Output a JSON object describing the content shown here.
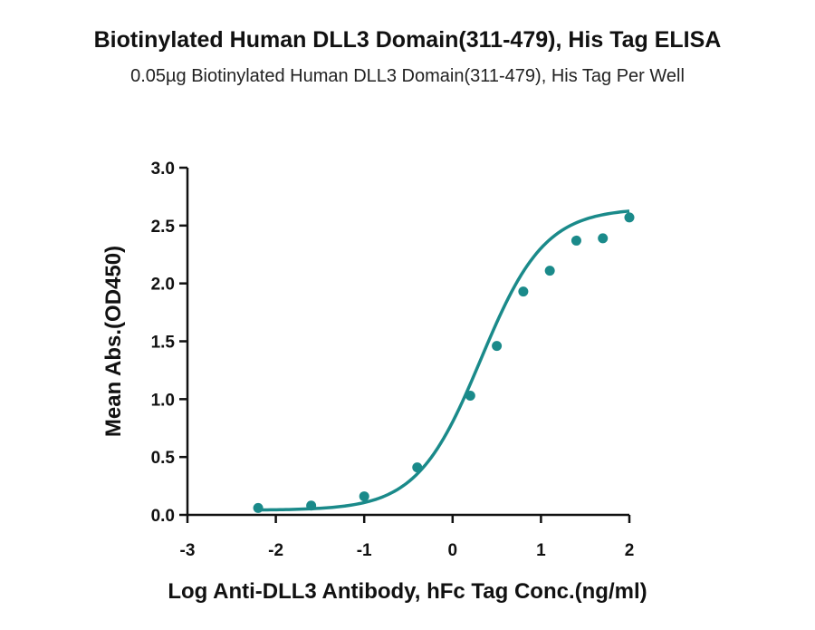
{
  "chart_data": {
    "type": "line",
    "title": "Biotinylated Human DLL3 Domain(311-479), His Tag ELISA",
    "subtitle": "0.05µg Biotinylated Human DLL3 Domain(311-479), His Tag Per Well",
    "xlabel": "Log Anti-DLL3 Antibody, hFc Tag Conc.(ng/ml)",
    "ylabel": "Mean Abs.(OD450)",
    "xlim": [
      -3,
      2
    ],
    "ylim": [
      0,
      3.0
    ],
    "xticks": [
      "-3",
      "-2",
      "-1",
      "0",
      "1",
      "2"
    ],
    "yticks": [
      "0.0",
      "0.5",
      "1.0",
      "1.5",
      "2.0",
      "2.5",
      "3.0"
    ],
    "grid": false,
    "series": [
      {
        "color": "#1a8a8a",
        "points": [
          {
            "x": -2.2,
            "y": 0.06
          },
          {
            "x": -1.6,
            "y": 0.08
          },
          {
            "x": -1.0,
            "y": 0.16
          },
          {
            "x": -0.4,
            "y": 0.41
          },
          {
            "x": 0.2,
            "y": 1.03
          },
          {
            "x": 0.5,
            "y": 1.46
          },
          {
            "x": 0.8,
            "y": 1.93
          },
          {
            "x": 1.1,
            "y": 2.11
          },
          {
            "x": 1.4,
            "y": 2.37
          },
          {
            "x": 1.7,
            "y": 2.39
          },
          {
            "x": 2.0,
            "y": 2.57
          }
        ],
        "fit": {
          "bottom": 0.04,
          "top": 2.65,
          "logEC50": 0.32,
          "hill": 1.2
        }
      }
    ]
  }
}
